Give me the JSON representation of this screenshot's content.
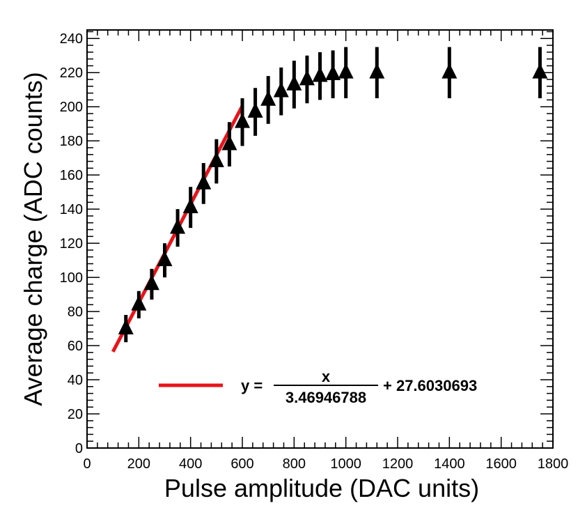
{
  "chart_data": {
    "type": "scatter",
    "xlabel": "Pulse amplitude (DAC units)",
    "ylabel": "Average charge (ADC counts)",
    "xlim": [
      0,
      1800
    ],
    "ylim": [
      0,
      245
    ],
    "x_ticks": [
      0,
      200,
      400,
      600,
      800,
      1000,
      1200,
      1400,
      1600,
      1800
    ],
    "y_ticks": [
      0,
      20,
      40,
      60,
      80,
      100,
      120,
      140,
      160,
      180,
      200,
      220,
      240
    ],
    "grid": false,
    "colors": {
      "points": "#000000",
      "fit": "#e8141a"
    },
    "points": [
      {
        "x": 150,
        "y": 70,
        "err": 8
      },
      {
        "x": 200,
        "y": 84,
        "err": 8
      },
      {
        "x": 250,
        "y": 96,
        "err": 9
      },
      {
        "x": 300,
        "y": 110,
        "err": 10
      },
      {
        "x": 350,
        "y": 129,
        "err": 11
      },
      {
        "x": 400,
        "y": 141,
        "err": 12
      },
      {
        "x": 450,
        "y": 155,
        "err": 12
      },
      {
        "x": 500,
        "y": 168,
        "err": 13
      },
      {
        "x": 550,
        "y": 178,
        "err": 13
      },
      {
        "x": 600,
        "y": 191,
        "err": 14
      },
      {
        "x": 650,
        "y": 197,
        "err": 14
      },
      {
        "x": 700,
        "y": 204,
        "err": 14
      },
      {
        "x": 750,
        "y": 209,
        "err": 14
      },
      {
        "x": 800,
        "y": 213,
        "err": 14
      },
      {
        "x": 850,
        "y": 216,
        "err": 14
      },
      {
        "x": 900,
        "y": 218,
        "err": 14
      },
      {
        "x": 950,
        "y": 219,
        "err": 14
      },
      {
        "x": 1000,
        "y": 220,
        "err": 15
      },
      {
        "x": 1120,
        "y": 220,
        "err": 15
      },
      {
        "x": 1400,
        "y": 220,
        "err": 15
      },
      {
        "x": 1750,
        "y": 220,
        "err": 15
      }
    ],
    "fit": {
      "x_range": [
        100,
        600
      ],
      "slope_denominator": 3.46946788,
      "intercept": 27.6030693
    },
    "legend": {
      "prefix": "y =",
      "numerator": "x",
      "denominator": "3.46946788",
      "suffix": "+ 27.6030693",
      "placement": "bottom-center"
    }
  }
}
